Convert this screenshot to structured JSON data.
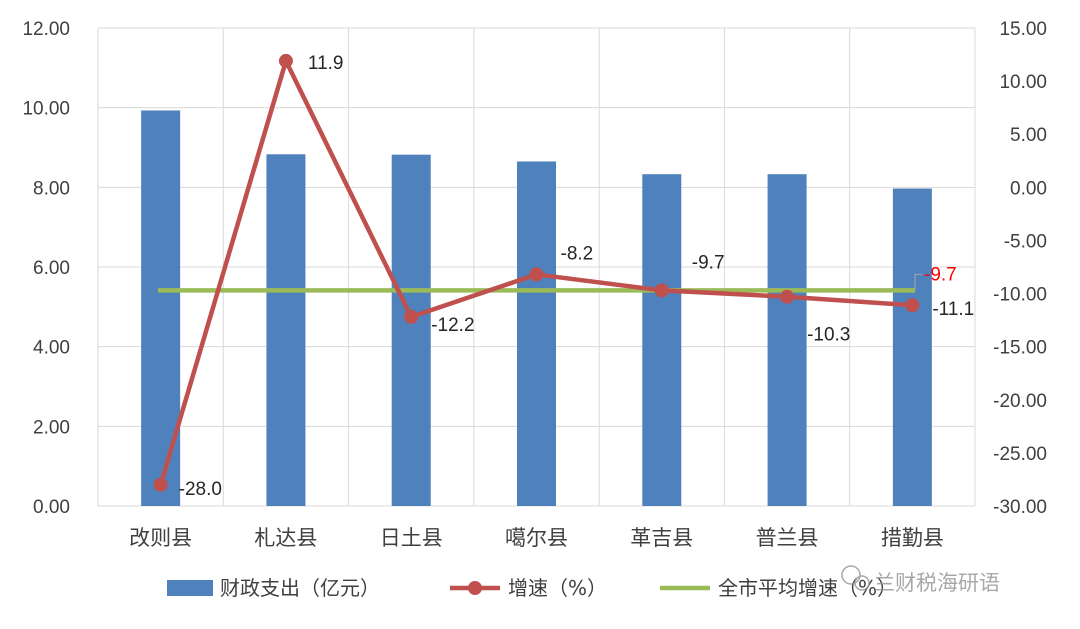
{
  "chart_data": {
    "type": "bar",
    "categories": [
      "改则县",
      "札达县",
      "日土县",
      "噶尔县",
      "革吉县",
      "普兰县",
      "措勤县"
    ],
    "series": [
      {
        "name": "财政支出（亿元）",
        "type": "bar",
        "axis": "left",
        "color": "#4f81bd",
        "values": [
          9.93,
          8.83,
          8.82,
          8.65,
          8.33,
          8.33,
          7.97
        ]
      },
      {
        "name": "增速（%）",
        "type": "line",
        "axis": "right",
        "color": "#c0504d",
        "values": [
          -28.0,
          11.9,
          -12.2,
          -8.2,
          -9.7,
          -10.3,
          -11.1
        ],
        "labels": [
          "-28.0",
          "11.9",
          "-12.2",
          "-8.2",
          "-9.7",
          "-10.3",
          "-11.1"
        ]
      },
      {
        "name": "全市平均增速（%）",
        "type": "line",
        "axis": "right",
        "color": "#9bbb59",
        "value": -9.7,
        "label": "-9.7",
        "label_color": "#ff0000"
      }
    ],
    "left_axis": {
      "ylim": [
        0,
        12
      ],
      "ticks": [
        "0.00",
        "2.00",
        "4.00",
        "6.00",
        "8.00",
        "10.00",
        "12.00"
      ]
    },
    "right_axis": {
      "ylim": [
        -30,
        15
      ],
      "ticks": [
        "-30.00",
        "-25.00",
        "-20.00",
        "-15.00",
        "-10.00",
        "-5.00",
        "0.00",
        "5.00",
        "10.00",
        "15.00"
      ]
    },
    "grid": true,
    "legend": "bottom"
  },
  "watermark": "兰财税海研语",
  "colors": {
    "grid": "#d9d9d9",
    "axis_text": "#404040"
  }
}
